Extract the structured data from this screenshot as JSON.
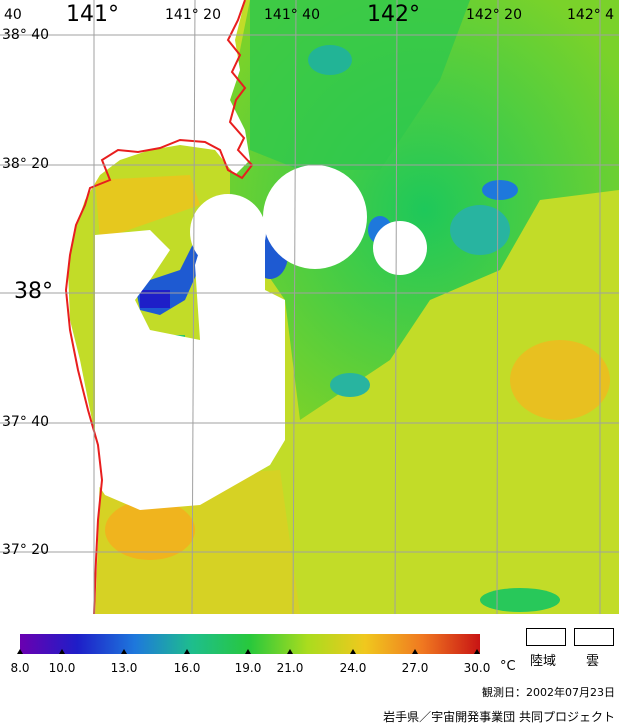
{
  "map": {
    "lon_labels": [
      "40",
      "141°",
      "141° 20",
      "141° 40",
      "142°",
      "142° 20",
      "142° 4"
    ],
    "lat_labels": [
      "38° 40",
      "38° 20",
      "38°",
      "37° 40",
      "37° 20"
    ]
  },
  "colorbar": {
    "ticks": [
      "8.0",
      "10.0",
      "13.0",
      "16.0",
      "19.0",
      "21.0",
      "24.0",
      "27.0",
      "30.0"
    ],
    "unit": "°C",
    "colors": [
      "#6a00b0",
      "#1e1ec8",
      "#1e78dc",
      "#1ebe8c",
      "#28c83c",
      "#aadc1e",
      "#f0c81e",
      "#f07820",
      "#c81414"
    ]
  },
  "legend": {
    "land_label": "陸域",
    "cloud_label": "雲"
  },
  "observation_date": "観測日：2002年07月23日",
  "credit": "岩手県／宇宙開発事業団 共同プロジェクト"
}
